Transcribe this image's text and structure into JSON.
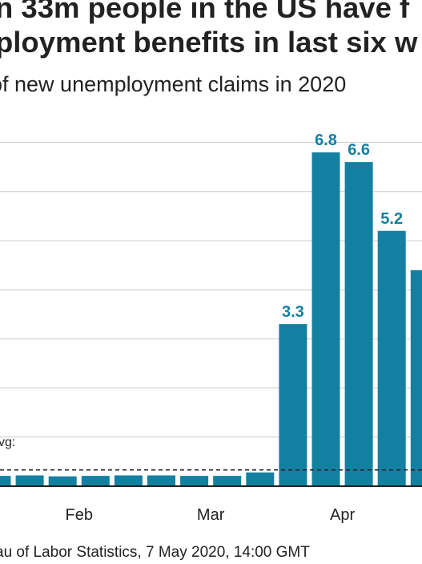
{
  "title_lines": [
    "n 33m people in the US have f",
    "ployment benefits in last six w"
  ],
  "subtitle": "of new unemployment claims in 2020",
  "source": "au of Labor Statistics, 7 May 2020, 14:00 GMT",
  "colors": {
    "bar": "#1380a1",
    "label": "#1380a1",
    "grid": "#cccccc",
    "axis": "#222222",
    "reference_line": "#222222",
    "text": "#222222"
  },
  "chart_data": {
    "type": "bar",
    "title": "",
    "xlabel": "",
    "ylabel": "",
    "unit": "millions",
    "ylim": [
      0,
      7.5
    ],
    "grid": true,
    "x_tick_labels": [
      {
        "label": "Feb",
        "week_index": 2
      },
      {
        "label": "Mar",
        "week_index": 6
      },
      {
        "label": "Apr",
        "week_index": 10
      }
    ],
    "weeks": [
      {
        "value": 0.21,
        "label": ""
      },
      {
        "value": 0.22,
        "label": ""
      },
      {
        "value": 0.2,
        "label": ""
      },
      {
        "value": 0.21,
        "label": ""
      },
      {
        "value": 0.22,
        "label": ""
      },
      {
        "value": 0.22,
        "label": ""
      },
      {
        "value": 0.21,
        "label": ""
      },
      {
        "value": 0.21,
        "label": ""
      },
      {
        "value": 0.28,
        "label": ""
      },
      {
        "value": 3.3,
        "label": "3.3"
      },
      {
        "value": 6.8,
        "label": "6.8"
      },
      {
        "value": 6.6,
        "label": "6.6"
      },
      {
        "value": 5.2,
        "label": "5.2"
      },
      {
        "value": 4.4,
        "label": ""
      }
    ],
    "reference_line": {
      "value": 0.33,
      "label": "vg:"
    }
  }
}
